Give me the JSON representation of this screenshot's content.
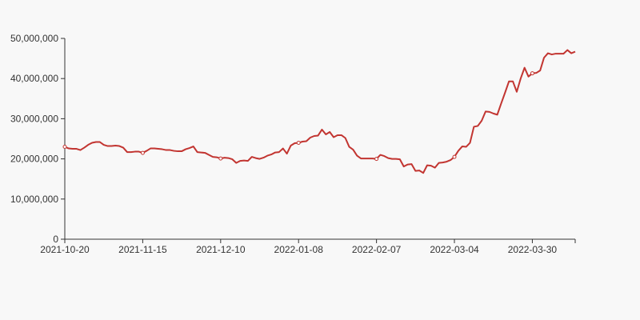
{
  "chart_data": {
    "type": "line",
    "title": "",
    "xlabel": "",
    "ylabel": "",
    "ylim": [
      0,
      50000000
    ],
    "grid": false,
    "legend": "none",
    "y_ticks": [
      {
        "value": 0,
        "label": "0"
      },
      {
        "value": 10000000,
        "label": "10,000,000"
      },
      {
        "value": 20000000,
        "label": "20,000,000"
      },
      {
        "value": 30000000,
        "label": "30,000,000"
      },
      {
        "value": 40000000,
        "label": "40,000,000"
      },
      {
        "value": 50000000,
        "label": "50,000,000"
      }
    ],
    "x_ticks": [
      {
        "index": 0,
        "label": "2021-10-20"
      },
      {
        "index": 20,
        "label": "2021-11-15"
      },
      {
        "index": 40,
        "label": "2021-12-10"
      },
      {
        "index": 60,
        "label": "2022-01-08"
      },
      {
        "index": 80,
        "label": "2022-02-07"
      },
      {
        "index": 100,
        "label": "2022-03-04"
      },
      {
        "index": 120,
        "label": "2022-03-30"
      }
    ],
    "series": [
      {
        "color": "#c23531",
        "values": [
          23000000,
          22600000,
          22500000,
          22500000,
          22200000,
          22800000,
          23500000,
          24000000,
          24200000,
          24200000,
          23500000,
          23200000,
          23200000,
          23300000,
          23200000,
          22800000,
          21700000,
          21700000,
          21800000,
          21800000,
          21500000,
          22000000,
          22600000,
          22600000,
          22500000,
          22400000,
          22200000,
          22200000,
          22000000,
          21900000,
          21900000,
          22400000,
          22700000,
          23100000,
          21700000,
          21600000,
          21500000,
          21000000,
          20500000,
          20400000,
          20100000,
          20300000,
          20200000,
          19900000,
          19000000,
          19500000,
          19600000,
          19500000,
          20500000,
          20200000,
          20000000,
          20300000,
          20800000,
          21100000,
          21600000,
          21700000,
          22600000,
          21300000,
          23300000,
          23900000,
          24000000,
          24300000,
          24400000,
          25300000,
          25700000,
          25800000,
          27300000,
          26100000,
          26700000,
          25400000,
          25900000,
          25900000,
          25200000,
          23000000,
          22300000,
          20800000,
          20100000,
          20100000,
          20100000,
          20100000,
          20000000,
          21000000,
          20700000,
          20200000,
          20000000,
          20000000,
          19900000,
          18100000,
          18600000,
          18700000,
          17000000,
          17100000,
          16500000,
          18400000,
          18300000,
          17800000,
          19000000,
          19100000,
          19300000,
          19700000,
          20500000,
          22000000,
          23100000,
          23000000,
          24000000,
          28000000,
          28200000,
          29500000,
          31800000,
          31700000,
          31300000,
          31000000,
          33800000,
          36500000,
          39300000,
          39300000,
          36700000,
          40000000,
          42700000,
          40500000,
          41300000,
          41400000,
          42000000,
          45200000,
          46300000,
          46000000,
          46200000,
          46200000,
          46200000,
          47100000,
          46300000,
          46700000
        ],
        "markers": [
          0,
          20,
          40,
          60,
          80,
          100,
          120
        ]
      }
    ]
  }
}
